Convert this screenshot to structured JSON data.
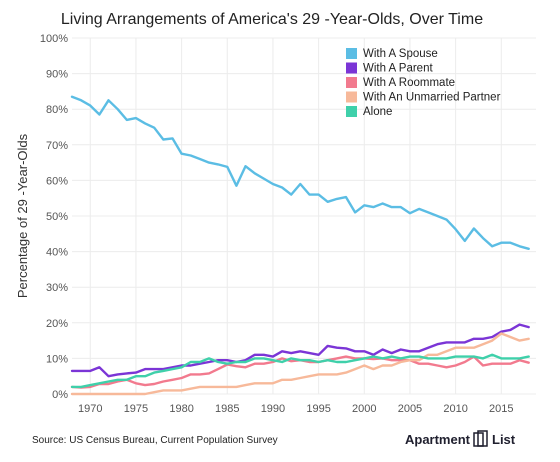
{
  "chart_data": {
    "type": "line",
    "title": "Living Arrangements of America's 29 -Year-Olds, Over Time",
    "ylabel": "Percentage of 29 -Year-Olds",
    "xlabel": "",
    "xlim": [
      1968,
      2018.8
    ],
    "ylim": [
      0,
      100
    ],
    "y_ticks": [
      "0%",
      "10%",
      "20%",
      "30%",
      "40%",
      "50%",
      "60%",
      "70%",
      "80%",
      "90%",
      "100%"
    ],
    "x_ticks": [
      "1970",
      "1975",
      "1980",
      "1985",
      "1990",
      "1995",
      "2000",
      "2005",
      "2010",
      "2015"
    ],
    "grid": true,
    "legend_position": "top-right",
    "x": [
      1968,
      1969,
      1970,
      1971,
      1972,
      1973,
      1974,
      1975,
      1976,
      1977,
      1978,
      1979,
      1980,
      1981,
      1982,
      1983,
      1984,
      1985,
      1986,
      1987,
      1988,
      1989,
      1990,
      1991,
      1992,
      1993,
      1994,
      1995,
      1996,
      1997,
      1998,
      1999,
      2000,
      2001,
      2002,
      2003,
      2004,
      2005,
      2006,
      2007,
      2008,
      2009,
      2010,
      2011,
      2012,
      2013,
      2014,
      2015,
      2016,
      2017,
      2018
    ],
    "series": [
      {
        "name": "With A Spouse",
        "color": "#5bbde4",
        "values": [
          83.5,
          82.5,
          81,
          78.5,
          82.5,
          80,
          77,
          77.5,
          76,
          74.8,
          71.5,
          71.8,
          67.5,
          67,
          66,
          65,
          64.5,
          63.8,
          58.5,
          64,
          62,
          60.5,
          59,
          58,
          56,
          59,
          56,
          56,
          54,
          54.8,
          55.3,
          51,
          53,
          52.5,
          53.5,
          52.5,
          52.5,
          50.8,
          52,
          51,
          50,
          49,
          46.3,
          43,
          46.5,
          43.8,
          41.5,
          42.5,
          42.5,
          41.5,
          40.8
        ]
      },
      {
        "name": "With A Parent",
        "color": "#7b35d6",
        "values": [
          6.5,
          6.5,
          6.5,
          7.5,
          5,
          5.5,
          5.8,
          6,
          7,
          7,
          7,
          7.5,
          8,
          8,
          8.5,
          9,
          9.5,
          9.5,
          9,
          9.5,
          11,
          11,
          10.5,
          12,
          11.5,
          12,
          11.5,
          11,
          13.5,
          13,
          12.8,
          12,
          12,
          11,
          12.5,
          11.5,
          12.5,
          12,
          12,
          13,
          14,
          14.5,
          14.5,
          14.5,
          15.5,
          15.5,
          16,
          17.5,
          18,
          19.5,
          18.8
        ]
      },
      {
        "name": "With A Roommate",
        "color": "#f27a8e",
        "values": [
          2,
          1.8,
          2,
          2.8,
          2.8,
          3.5,
          4,
          3,
          2.5,
          2.8,
          3.5,
          4,
          4.5,
          5.5,
          5.5,
          5.8,
          7,
          8.3,
          7.8,
          7.5,
          8.5,
          8.5,
          9,
          10,
          9.2,
          9.5,
          9,
          9,
          9.5,
          10,
          10.5,
          10,
          10,
          9.8,
          10,
          9.5,
          9.5,
          9.5,
          8.5,
          8.5,
          8,
          7.5,
          8,
          9,
          10.5,
          8,
          8.5,
          8.5,
          8.5,
          9.5,
          8.8
        ]
      },
      {
        "name": "With An Unmarried Partner",
        "color": "#f7b99a",
        "values": [
          0,
          0,
          0,
          0,
          0,
          0,
          0,
          0,
          0,
          0.5,
          1,
          1,
          1,
          1.5,
          2,
          2,
          2,
          2,
          2,
          2.5,
          3,
          3,
          3,
          4,
          4,
          4.5,
          5,
          5.5,
          5.5,
          5.5,
          6,
          7,
          8,
          7,
          8,
          8,
          9,
          9.5,
          9.5,
          11,
          11,
          12,
          13,
          13,
          13,
          14,
          15,
          17,
          16,
          15,
          15.5
        ]
      },
      {
        "name": "Alone",
        "color": "#3fd0aa",
        "values": [
          2,
          2,
          2.5,
          3,
          3.5,
          4,
          4,
          5,
          5,
          6,
          6.5,
          7,
          7.5,
          9,
          9,
          10,
          9,
          8.5,
          9,
          9,
          10,
          10,
          9.5,
          9,
          10,
          9.5,
          9.5,
          9,
          9.5,
          9,
          9,
          9.5,
          10,
          10.5,
          10,
          10.5,
          10,
          10.5,
          10.5,
          10,
          10,
          10,
          10.5,
          10.5,
          10.5,
          10,
          11,
          10,
          10,
          10,
          10.5
        ]
      }
    ]
  },
  "source": "Source: US Census Bureau, Current Population Survey",
  "brand": {
    "name_left": "Apartment",
    "name_right": "List"
  }
}
